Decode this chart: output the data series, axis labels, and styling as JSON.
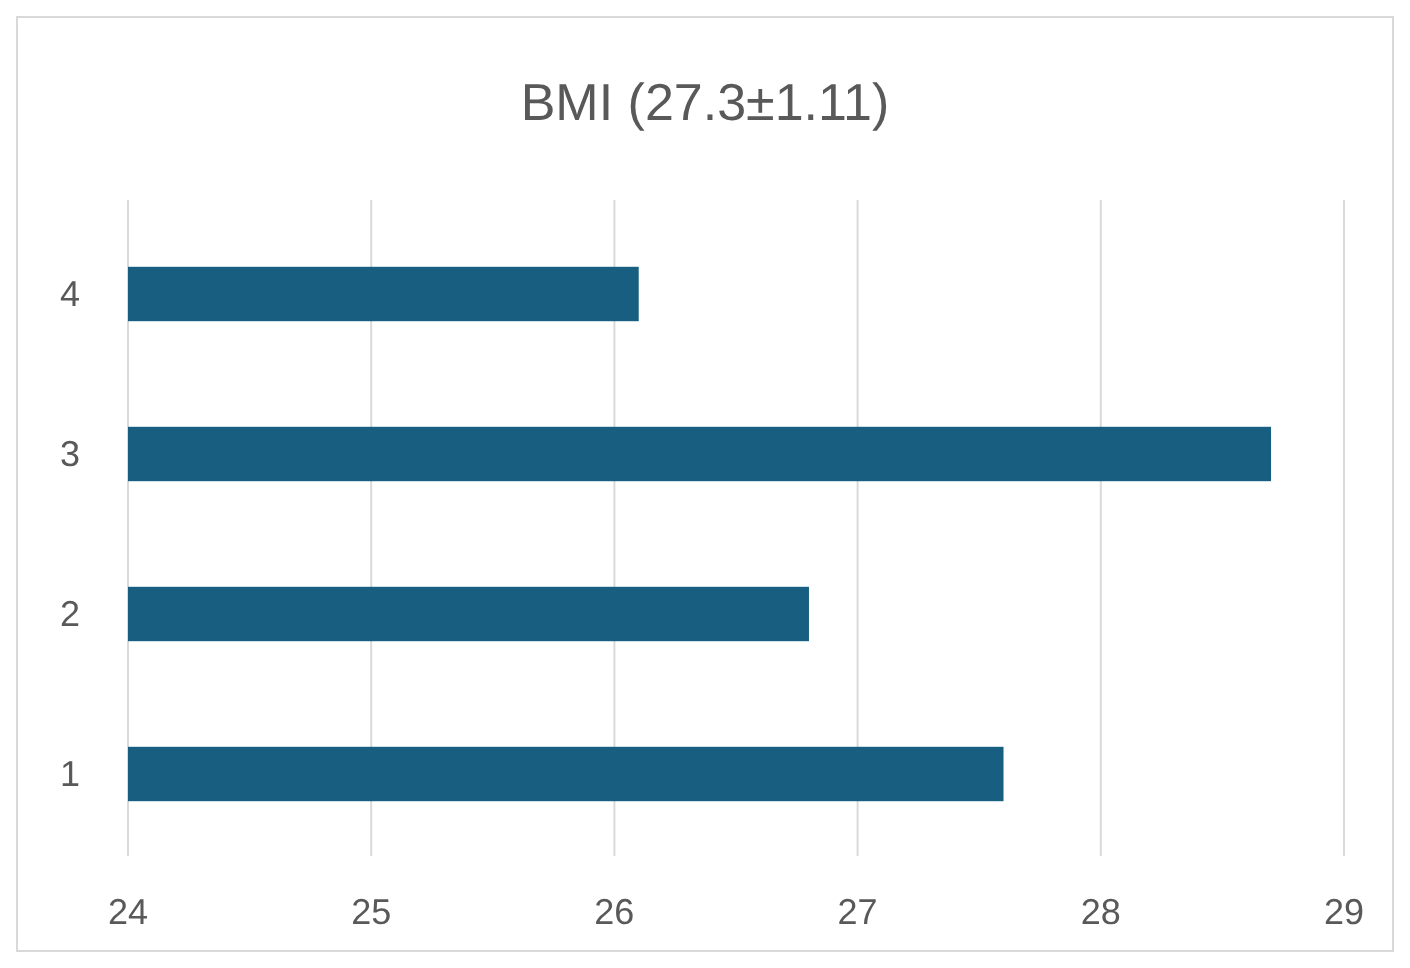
{
  "chart_data": {
    "type": "bar",
    "title": "BMI (27.3±1.11)",
    "orientation": "horizontal",
    "categories": [
      "4",
      "3",
      "2",
      "1"
    ],
    "values": [
      26.1,
      28.7,
      26.8,
      27.6
    ],
    "color": "#175e80",
    "xlim": [
      24,
      29
    ],
    "xticks": [
      24,
      25,
      26,
      27,
      28,
      29
    ],
    "grid": "x"
  }
}
